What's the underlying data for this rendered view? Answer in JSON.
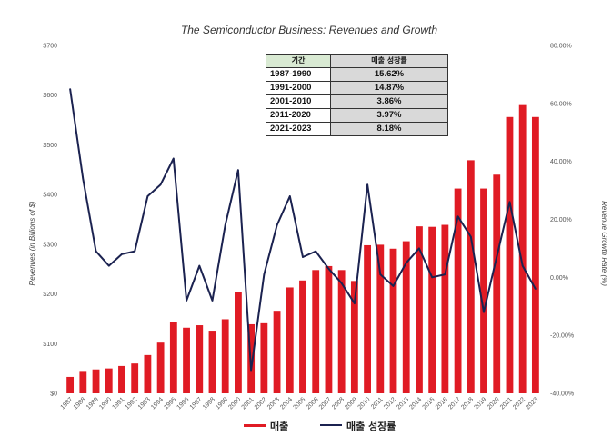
{
  "chart_data": {
    "type": "bar+line",
    "title": "The Semiconductor Business: Revenues and Growth",
    "ylabel": "Revenues (in Billions of $)",
    "y2label": "Revenue Growth Rate (%)",
    "ylim": [
      0,
      700
    ],
    "y2lim": [
      -40,
      80
    ],
    "yticks": [
      "$0",
      "$100",
      "$200",
      "$300",
      "$400",
      "$500",
      "$600",
      "$700"
    ],
    "y2ticks": [
      "-40.00%",
      "-20.00%",
      "0.00%",
      "20.00%",
      "40.00%",
      "60.00%",
      "80.00%"
    ],
    "categories": [
      "1987",
      "1988",
      "1989",
      "1990",
      "1991",
      "1992",
      "1993",
      "1994",
      "1995",
      "1996",
      "1997",
      "1998",
      "1999",
      "2000",
      "2001",
      "2002",
      "2003",
      "2004",
      "2005",
      "2006",
      "2007",
      "2008",
      "2009",
      "2010",
      "2011",
      "2012",
      "2013",
      "2014",
      "2015",
      "2016",
      "2017",
      "2018",
      "2019",
      "2020",
      "2021",
      "2022",
      "2023"
    ],
    "series": [
      {
        "name": "매출",
        "type": "bar",
        "color": "#e01b24",
        "values": [
          33,
          45,
          48,
          50,
          55,
          60,
          77,
          102,
          144,
          132,
          137,
          126,
          149,
          204,
          139,
          141,
          166,
          213,
          227,
          248,
          256,
          248,
          226,
          298,
          299,
          291,
          306,
          336,
          335,
          339,
          412,
          469,
          412,
          440,
          556,
          580,
          556
        ]
      },
      {
        "name": "매출 성장률",
        "type": "line",
        "color": "#1b2250",
        "values": [
          65,
          34,
          9,
          4,
          8,
          9,
          28,
          32,
          41,
          -8,
          4,
          -8,
          18,
          37,
          -32,
          1,
          18,
          28,
          7,
          9,
          3,
          -2,
          -9,
          32,
          1,
          -3,
          5,
          10,
          0,
          1,
          21,
          14,
          -12,
          7,
          26,
          4,
          -4
        ]
      }
    ],
    "legend": {
      "position": "bottom-center",
      "items": [
        "매출",
        "매출 성장률"
      ]
    },
    "grid": false
  },
  "summary_table": {
    "headers": [
      "기간",
      "매출 성장률"
    ],
    "rows": [
      {
        "period": "1987-1990",
        "rate": "15.62%"
      },
      {
        "period": "1991-2000",
        "rate": "14.87%"
      },
      {
        "period": "2001-2010",
        "rate": "3.86%"
      },
      {
        "period": "2011-2020",
        "rate": "3.97%"
      },
      {
        "period": "2021-2023",
        "rate": "8.18%"
      }
    ]
  }
}
